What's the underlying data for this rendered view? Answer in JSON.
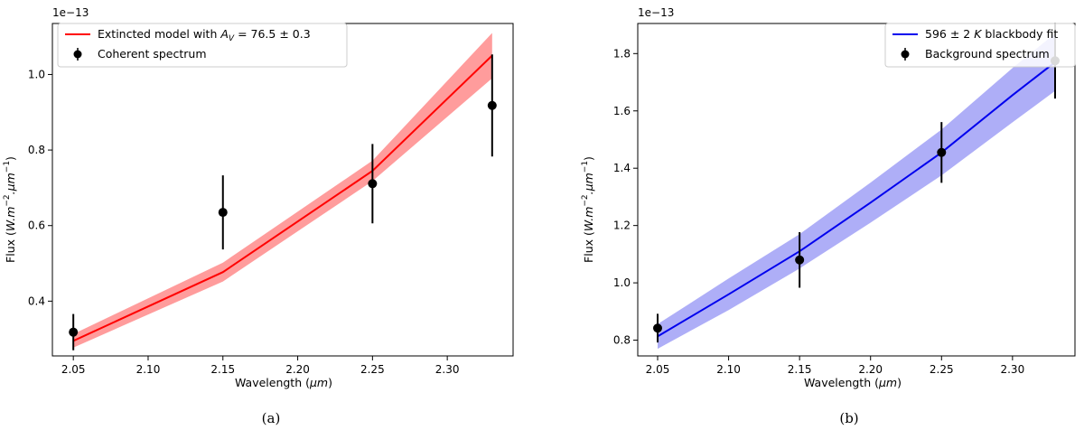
{
  "chart_data": [
    {
      "type": "line",
      "caption": "(a)",
      "xlabel": "Wavelength (μm)",
      "ylabel": "Flux (W.m⁻².μm⁻¹)",
      "y_multiplier": "1e−13",
      "xlim": [
        2.036,
        2.344
      ],
      "ylim": [
        0.255,
        1.135
      ],
      "xticks": [
        2.05,
        2.1,
        2.15,
        2.2,
        2.25,
        2.3
      ],
      "xtick_labels": [
        "2.05",
        "2.10",
        "2.15",
        "2.20",
        "2.25",
        "2.30"
      ],
      "yticks": [
        0.4,
        0.6,
        0.8,
        1.0
      ],
      "ytick_labels": [
        "0.4",
        "0.6",
        "0.8",
        "1.0"
      ],
      "legend": "top-left",
      "grid": false,
      "model": {
        "name": "Extincted model with A_V = 76.5 ± 0.3",
        "color": "#ff0000",
        "band_color": "#ff9c9c",
        "x": [
          2.05,
          2.15,
          2.25,
          2.33
        ],
        "y": [
          0.295,
          0.477,
          0.745,
          1.05
        ],
        "y_lower": [
          0.277,
          0.452,
          0.718,
          0.99
        ],
        "y_upper": [
          0.313,
          0.502,
          0.772,
          1.11
        ]
      },
      "data": {
        "name": "Coherent spectrum",
        "color": "#000000",
        "x": [
          2.05,
          2.15,
          2.25,
          2.33
        ],
        "y": [
          0.318,
          0.635,
          0.711,
          0.918
        ],
        "yerr": [
          0.048,
          0.098,
          0.105,
          0.135
        ]
      }
    },
    {
      "type": "line",
      "caption": "(b)",
      "xlabel": "Wavelength (μm)",
      "ylabel": "Flux (W.m⁻².μm⁻¹)",
      "y_multiplier": "1e−13",
      "xlim": [
        2.036,
        2.344
      ],
      "ylim": [
        0.745,
        1.905
      ],
      "xticks": [
        2.05,
        2.1,
        2.15,
        2.2,
        2.25,
        2.3
      ],
      "xtick_labels": [
        "2.05",
        "2.10",
        "2.15",
        "2.20",
        "2.25",
        "2.30"
      ],
      "yticks": [
        0.8,
        1.0,
        1.2,
        1.4,
        1.6,
        1.8
      ],
      "ytick_labels": [
        "0.8",
        "1.0",
        "1.2",
        "1.4",
        "1.6",
        "1.8"
      ],
      "legend": "top-right",
      "grid": false,
      "model": {
        "name": "596 ± 2 K blackbody fit",
        "color": "#0000ee",
        "band_color": "#aeaef7",
        "x": [
          2.05,
          2.1,
          2.15,
          2.2,
          2.25,
          2.3,
          2.33
        ],
        "y": [
          0.813,
          0.96,
          1.11,
          1.28,
          1.455,
          1.655,
          1.77
        ],
        "y_lower": [
          0.77,
          0.905,
          1.05,
          1.21,
          1.375,
          1.56,
          1.67
        ],
        "y_upper": [
          0.856,
          1.015,
          1.17,
          1.35,
          1.535,
          1.75,
          1.87
        ]
      },
      "data": {
        "name": "Background spectrum",
        "color": "#000000",
        "x": [
          2.05,
          2.15,
          2.25,
          2.33
        ],
        "y": [
          0.842,
          1.08,
          1.455,
          1.775
        ],
        "yerr": [
          0.05,
          0.097,
          0.106,
          0.132
        ]
      }
    }
  ]
}
